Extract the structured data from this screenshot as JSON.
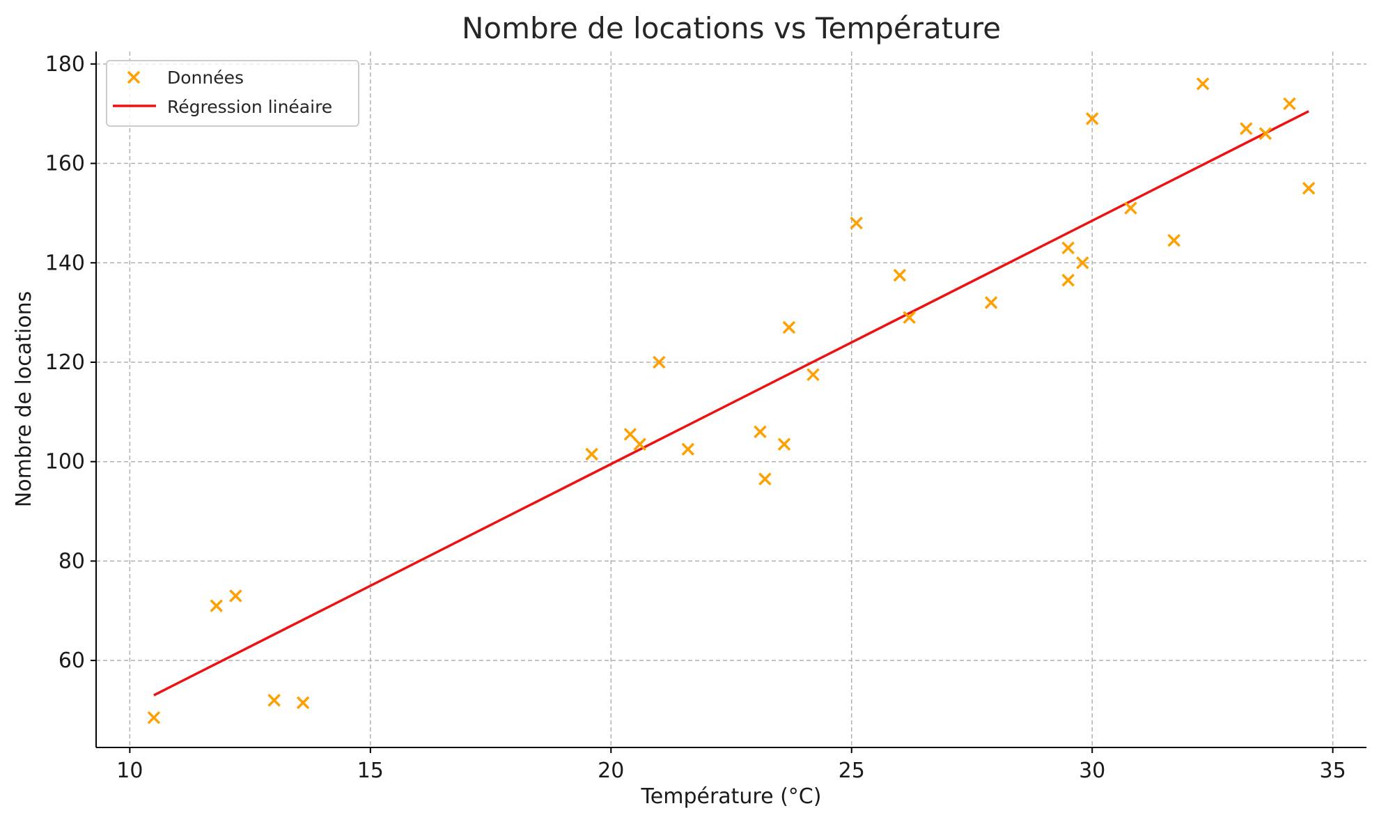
{
  "chart_data": {
    "type": "scatter",
    "title": "Nombre de locations vs Température",
    "xlabel": "Température (°C)",
    "ylabel": "Nombre de locations",
    "xlim": [
      9.3,
      35.7
    ],
    "ylim": [
      42.5,
      182.5
    ],
    "xticks": [
      10,
      15,
      20,
      25,
      30,
      35
    ],
    "yticks": [
      60,
      80,
      100,
      120,
      140,
      160,
      180
    ],
    "grid": true,
    "legend_position": "top-left",
    "series": [
      {
        "name": "Données",
        "kind": "scatter",
        "marker": "x",
        "color": "#ff9f00",
        "points": [
          {
            "x": 10.5,
            "y": 48.5
          },
          {
            "x": 11.8,
            "y": 71
          },
          {
            "x": 12.2,
            "y": 73
          },
          {
            "x": 13.0,
            "y": 52
          },
          {
            "x": 13.6,
            "y": 51.5
          },
          {
            "x": 19.6,
            "y": 101.5
          },
          {
            "x": 20.4,
            "y": 105.5
          },
          {
            "x": 20.6,
            "y": 103.5
          },
          {
            "x": 21.0,
            "y": 120
          },
          {
            "x": 21.6,
            "y": 102.5
          },
          {
            "x": 23.1,
            "y": 106
          },
          {
            "x": 23.2,
            "y": 96.5
          },
          {
            "x": 23.6,
            "y": 103.5
          },
          {
            "x": 23.7,
            "y": 127
          },
          {
            "x": 24.2,
            "y": 117.5
          },
          {
            "x": 25.1,
            "y": 148
          },
          {
            "x": 26.0,
            "y": 137.5
          },
          {
            "x": 26.2,
            "y": 129
          },
          {
            "x": 27.9,
            "y": 132
          },
          {
            "x": 29.5,
            "y": 136.5
          },
          {
            "x": 29.5,
            "y": 143
          },
          {
            "x": 29.8,
            "y": 140
          },
          {
            "x": 30.0,
            "y": 169
          },
          {
            "x": 30.8,
            "y": 151
          },
          {
            "x": 31.7,
            "y": 144.5
          },
          {
            "x": 32.3,
            "y": 176
          },
          {
            "x": 33.2,
            "y": 167
          },
          {
            "x": 33.6,
            "y": 166
          },
          {
            "x": 34.1,
            "y": 172
          },
          {
            "x": 34.5,
            "y": 155
          }
        ]
      },
      {
        "name": "Régression linéaire",
        "kind": "line",
        "color": "#ee1111",
        "points": [
          {
            "x": 10.5,
            "y": 53
          },
          {
            "x": 34.5,
            "y": 170.5
          }
        ]
      }
    ]
  }
}
